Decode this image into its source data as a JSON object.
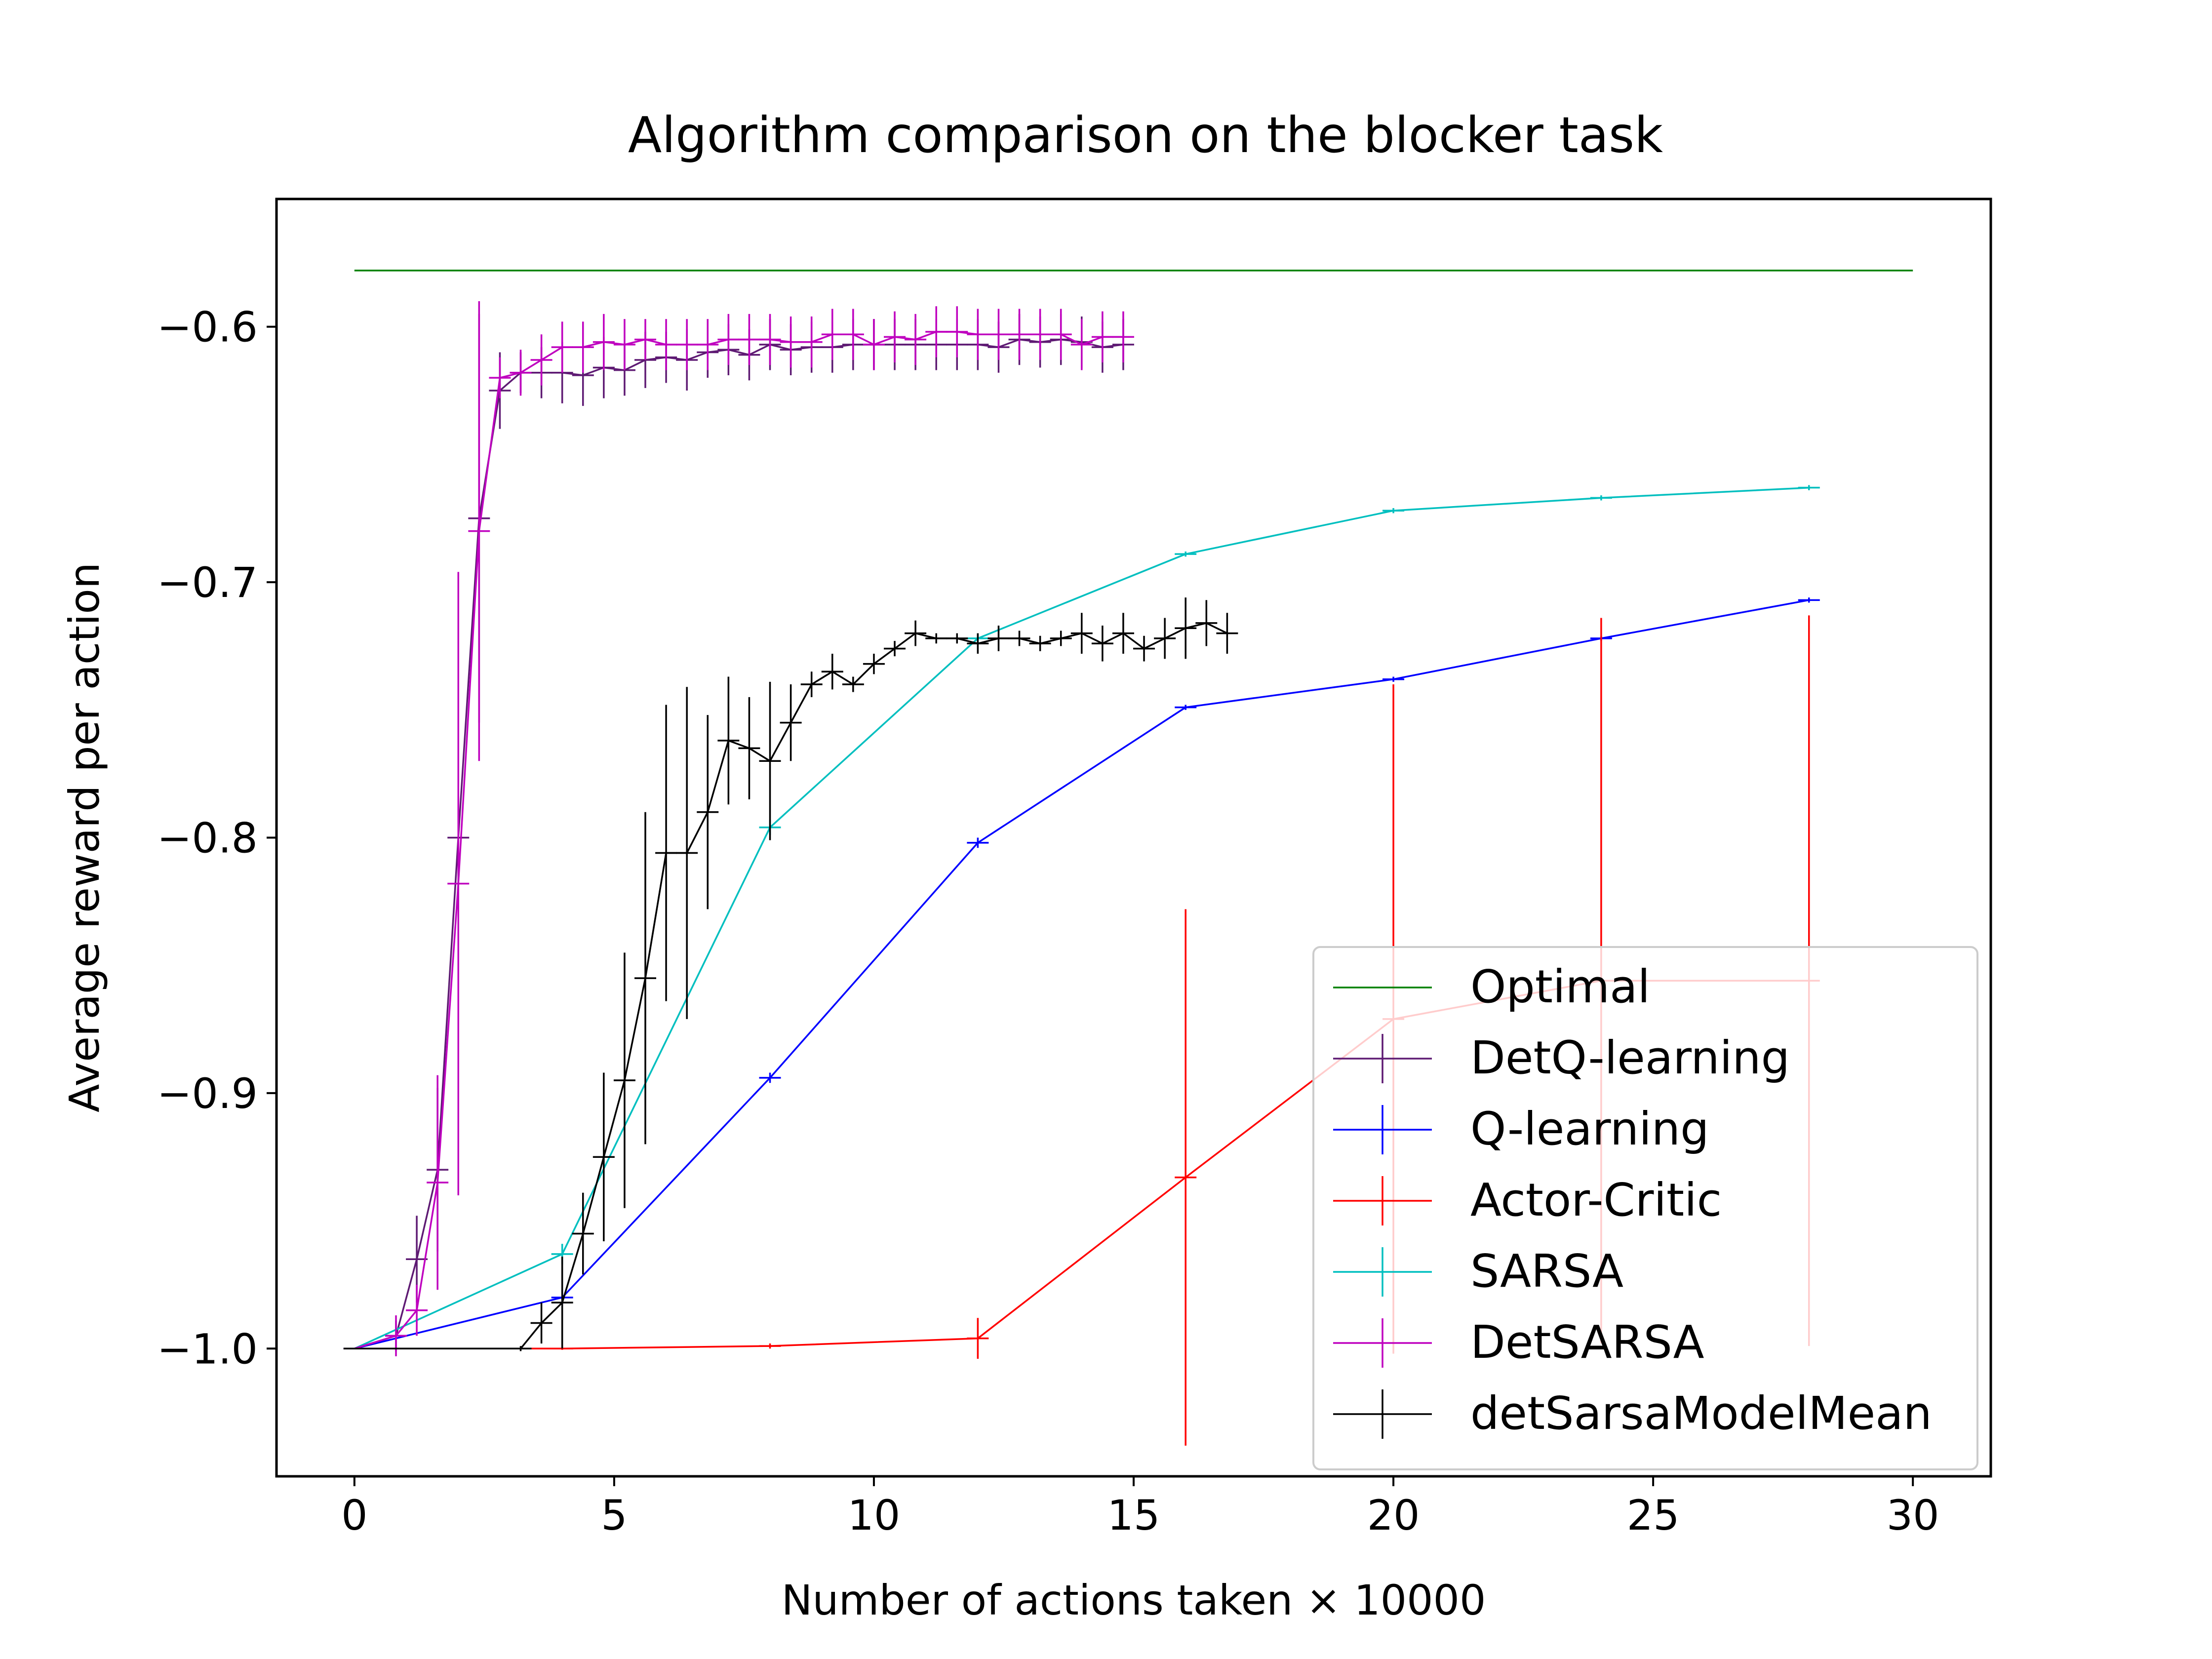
{
  "chart_data": {
    "type": "line",
    "title": "Algorithm comparison on the blocker task",
    "xlabel": "Number of actions taken × 10000",
    "ylabel": "Average reward per action",
    "xlim": [
      -1.5,
      31.5
    ],
    "ylim": [
      -1.05,
      -0.55
    ],
    "xticks": [
      0,
      5,
      10,
      15,
      20,
      25,
      30
    ],
    "xtick_labels": [
      "0",
      "5",
      "10",
      "15",
      "20",
      "25",
      "30"
    ],
    "yticks": [
      -1.0,
      -0.9,
      -0.8,
      -0.7,
      -0.6
    ],
    "ytick_labels": [
      "−1.0",
      "−0.9",
      "−0.8",
      "−0.7",
      "−0.6"
    ],
    "grid": false,
    "legend_position": "lower right",
    "series": [
      {
        "name": "Optimal",
        "color": "#008000",
        "x": [
          0,
          30
        ],
        "y": [
          -0.578,
          -0.578
        ],
        "err": null
      },
      {
        "name": "DetQ-learning",
        "color": "#5e1a73",
        "x": [
          0,
          0.8,
          1.2,
          1.6,
          2.0,
          2.4,
          2.8,
          3.2,
          3.6,
          4.0,
          4.4,
          4.8,
          5.2,
          5.6,
          6.0,
          6.4,
          6.8,
          7.2,
          7.6,
          8.0,
          8.4,
          8.8,
          9.2,
          9.6,
          10.0,
          10.4,
          10.8,
          11.2,
          11.6,
          12.0,
          12.4,
          12.8,
          13.2,
          13.6,
          14.0,
          14.4,
          14.8
        ],
        "y": [
          -1.0,
          -0.995,
          -0.965,
          -0.93,
          -0.8,
          -0.675,
          -0.625,
          -0.618,
          -0.618,
          -0.618,
          -0.619,
          -0.616,
          -0.617,
          -0.613,
          -0.612,
          -0.613,
          -0.61,
          -0.609,
          -0.611,
          -0.607,
          -0.609,
          -0.608,
          -0.608,
          -0.607,
          -0.607,
          -0.607,
          -0.607,
          -0.607,
          -0.607,
          -0.607,
          -0.608,
          -0.605,
          -0.606,
          -0.605,
          -0.606,
          -0.608,
          -0.607
        ],
        "err": [
          0,
          0.006,
          0.017,
          0.032,
          0.06,
          0.08,
          0.015,
          0.008,
          0.01,
          0.012,
          0.012,
          0.012,
          0.01,
          0.011,
          0.01,
          0.012,
          0.01,
          0.01,
          0.01,
          0.01,
          0.01,
          0.01,
          0.01,
          0.01,
          0.01,
          0.01,
          0.01,
          0.01,
          0.01,
          0.01,
          0.01,
          0.01,
          0.01,
          0.01,
          0.01,
          0.01,
          0.01
        ]
      },
      {
        "name": "Q-learning",
        "color": "#0000ff",
        "x": [
          0,
          4,
          8,
          12,
          16,
          20,
          24,
          28
        ],
        "y": [
          -1.0,
          -0.98,
          -0.894,
          -0.802,
          -0.749,
          -0.738,
          -0.722,
          -0.707
        ],
        "err": [
          0,
          0.003,
          0.002,
          0.002,
          0.001,
          0.001,
          0.001,
          0.001
        ]
      },
      {
        "name": "Actor-Critic",
        "color": "#ff0000",
        "x": [
          0,
          4,
          8,
          12,
          16,
          20,
          24,
          28
        ],
        "y": [
          -1.0,
          -1.0,
          -0.999,
          -0.996,
          -0.933,
          -0.871,
          -0.856,
          -0.856
        ],
        "err": [
          0,
          0.0005,
          0.001,
          0.008,
          0.105,
          0.131,
          0.142,
          0.143
        ]
      },
      {
        "name": "SARSA",
        "color": "#00bfbf",
        "x": [
          0,
          4,
          8,
          12,
          16,
          20,
          24,
          28
        ],
        "y": [
          -1.0,
          -0.963,
          -0.796,
          -0.722,
          -0.689,
          -0.672,
          -0.667,
          -0.663
        ],
        "err": [
          0,
          0.004,
          0.003,
          0.002,
          0.001,
          0.001,
          0.001,
          0.001
        ]
      },
      {
        "name": "DetSARSA",
        "color": "#bf00bf",
        "x": [
          0,
          0.8,
          1.2,
          1.6,
          2.0,
          2.4,
          2.8,
          3.2,
          3.6,
          4.0,
          4.4,
          4.8,
          5.2,
          5.6,
          6.0,
          6.4,
          6.8,
          7.2,
          7.6,
          8.0,
          8.4,
          8.8,
          9.2,
          9.6,
          10.0,
          10.4,
          10.8,
          11.2,
          11.6,
          12.0,
          12.4,
          12.8,
          13.2,
          13.6,
          14.0,
          14.4,
          14.8
        ],
        "y": [
          -1.0,
          -0.995,
          -0.985,
          -0.935,
          -0.818,
          -0.68,
          -0.62,
          -0.618,
          -0.613,
          -0.608,
          -0.608,
          -0.606,
          -0.607,
          -0.605,
          -0.607,
          -0.607,
          -0.607,
          -0.605,
          -0.605,
          -0.605,
          -0.606,
          -0.606,
          -0.603,
          -0.603,
          -0.607,
          -0.604,
          -0.605,
          -0.602,
          -0.602,
          -0.603,
          -0.603,
          -0.603,
          -0.603,
          -0.603,
          -0.607,
          -0.604,
          -0.604
        ],
        "err": [
          0,
          0.008,
          0.01,
          0.042,
          0.122,
          0.09,
          0.008,
          0.009,
          0.01,
          0.01,
          0.01,
          0.011,
          0.01,
          0.008,
          0.01,
          0.01,
          0.01,
          0.01,
          0.01,
          0.01,
          0.01,
          0.01,
          0.01,
          0.01,
          0.01,
          0.01,
          0.01,
          0.01,
          0.01,
          0.01,
          0.01,
          0.01,
          0.01,
          0.01,
          0.01,
          0.01,
          0.01
        ]
      },
      {
        "name": "detSarsaModelMean",
        "color": "#000000",
        "x": [
          0,
          0.8,
          1.6,
          2.4,
          3.2,
          3.6,
          4.0,
          4.4,
          4.8,
          5.2,
          5.6,
          6.0,
          6.4,
          6.8,
          7.2,
          7.6,
          8.0,
          8.4,
          8.8,
          9.2,
          9.6,
          10.0,
          10.4,
          10.8,
          11.2,
          11.6,
          12.0,
          12.4,
          12.8,
          13.2,
          13.6,
          14.0,
          14.4,
          14.8,
          15.2,
          15.6,
          16.0,
          16.4,
          16.8
        ],
        "y": [
          -1.0,
          -1.0,
          -1.0,
          -1.0,
          -1.0,
          -0.99,
          -0.982,
          -0.955,
          -0.925,
          -0.895,
          -0.855,
          -0.806,
          -0.806,
          -0.79,
          -0.762,
          -0.765,
          -0.77,
          -0.755,
          -0.74,
          -0.735,
          -0.74,
          -0.732,
          -0.726,
          -0.72,
          -0.722,
          -0.722,
          -0.724,
          -0.722,
          -0.722,
          -0.724,
          -0.722,
          -0.72,
          -0.724,
          -0.72,
          -0.726,
          -0.722,
          -0.718,
          -0.716,
          -0.72
        ],
        "err": [
          0,
          0,
          0,
          0,
          0.001,
          0.008,
          0.018,
          0.016,
          0.033,
          0.05,
          0.065,
          0.058,
          0.065,
          0.038,
          0.025,
          0.02,
          0.031,
          0.015,
          0.005,
          0.007,
          0.003,
          0.004,
          0.003,
          0.005,
          0.002,
          0.002,
          0.004,
          0.005,
          0.003,
          0.003,
          0.003,
          0.008,
          0.007,
          0.008,
          0.005,
          0.008,
          0.012,
          0.009,
          0.008
        ]
      }
    ]
  }
}
